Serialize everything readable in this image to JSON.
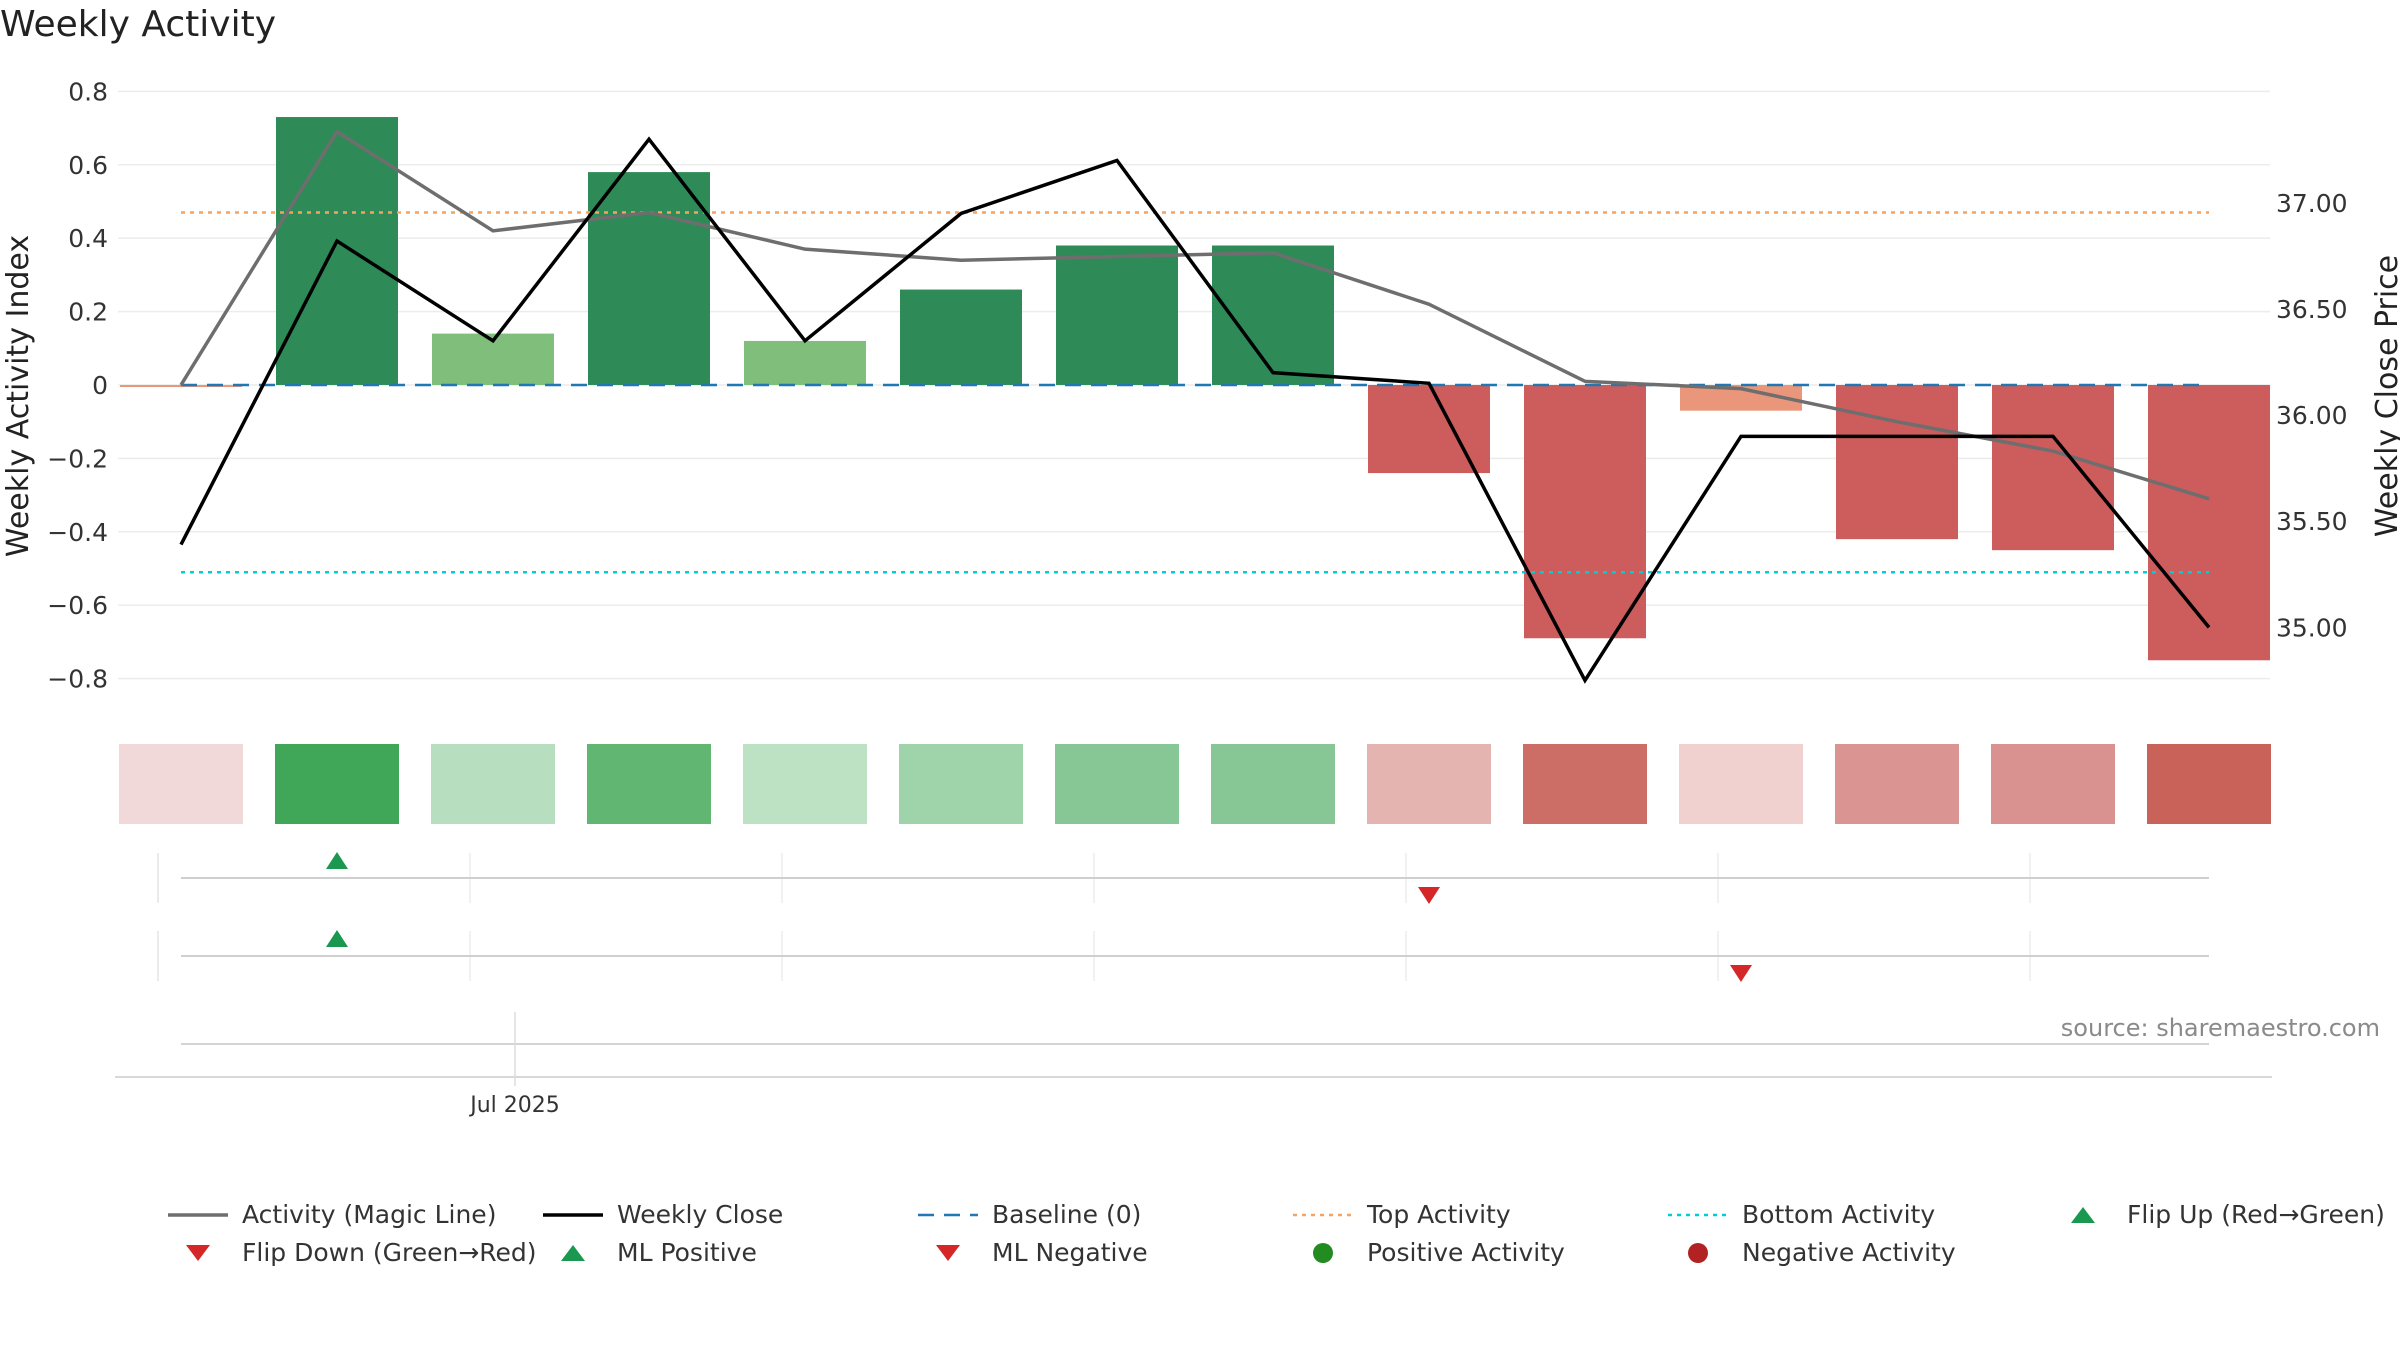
{
  "title": "Weekly Activity",
  "source": "source: sharemaestro.com",
  "colors": {
    "bar_pos_strong": "#2e8b57",
    "bar_pos_light": "#7fbf7b",
    "bar_neg_strong": "#cd5c5c",
    "bar_neg_light": "#e9967a",
    "magic_line": "#6e6e6e",
    "weekly_close": "#000000",
    "baseline": "#1f77b4",
    "top_activity": "#f4a460",
    "bottom_activity": "#00ced1",
    "up_marker": "#1a9850",
    "down_marker": "#d62728",
    "positive_dot": "#228b22",
    "negative_dot": "#b22222"
  },
  "chart_data": {
    "type": "bar",
    "x_tick_label": "Jul 2025",
    "ylabel_left": "Weekly Activity Index",
    "ylabel_right": "Weekly Close Price",
    "ylim_left": [
      -0.88,
      0.82
    ],
    "ylim_right": [
      34.62,
      37.56
    ],
    "yticks_left": [
      "0.8",
      "0.6",
      "0.4",
      "0.2",
      "0",
      "−0.2",
      "−0.4",
      "−0.6",
      "−0.8"
    ],
    "yticks_left_values": [
      0.8,
      0.6,
      0.4,
      0.2,
      0,
      -0.2,
      -0.4,
      -0.6,
      -0.8
    ],
    "yticks_right": [
      "37.00",
      "36.50",
      "36.00",
      "35.50",
      "35.00"
    ],
    "yticks_right_values": [
      37.0,
      36.5,
      36.0,
      35.5,
      35.0
    ],
    "activity": [
      0.0,
      0.73,
      0.14,
      0.58,
      0.12,
      0.26,
      0.38,
      0.38,
      -0.24,
      -0.69,
      -0.07,
      -0.42,
      -0.45,
      -0.75
    ],
    "bar_shade": [
      "neg_light",
      "pos_strong",
      "pos_light",
      "pos_strong",
      "pos_light",
      "pos_strong",
      "pos_strong",
      "pos_strong",
      "neg_strong",
      "neg_strong",
      "neg_light",
      "neg_strong",
      "neg_strong",
      "neg_strong"
    ],
    "magic_line": [
      0.0,
      0.69,
      0.42,
      0.47,
      0.37,
      0.34,
      0.35,
      0.36,
      0.22,
      0.01,
      -0.01,
      -0.1,
      -0.18,
      -0.31
    ],
    "weekly_close": [
      35.39,
      36.82,
      36.35,
      37.3,
      36.35,
      36.95,
      37.2,
      36.2,
      36.15,
      34.75,
      35.9,
      35.9,
      35.9,
      35.0
    ],
    "baseline": 0,
    "top_activity": 0.47,
    "bottom_activity": -0.51,
    "heat_strip": [
      "#f2d9d9",
      "#3fa757",
      "#b7dfbf",
      "#61b671",
      "#bce2c3",
      "#9fd3a9",
      "#86c795",
      "#86c795",
      "#e4b4b1",
      "#cc6e66",
      "#f0d1cf",
      "#da9592",
      "#d99290",
      "#c96259"
    ],
    "signal_rows": [
      {
        "up": [
          1
        ],
        "down": [
          8
        ]
      },
      {
        "up": [
          1
        ],
        "down": [
          10
        ]
      }
    ],
    "legend": [
      {
        "label": "Activity (Magic Line)",
        "kind": "line-solid",
        "color_key": "magic_line"
      },
      {
        "label": "Weekly Close",
        "kind": "line-solid",
        "color_key": "weekly_close"
      },
      {
        "label": "Baseline (0)",
        "kind": "line-dashed",
        "color_key": "baseline"
      },
      {
        "label": "Top Activity",
        "kind": "line-dotted",
        "color_key": "top_activity"
      },
      {
        "label": "Bottom Activity",
        "kind": "line-dotted",
        "color_key": "bottom_activity"
      },
      {
        "label": "Flip Up (Red→Green)",
        "kind": "tri-up",
        "color_key": "up_marker"
      },
      {
        "label": "Flip Down (Green→Red)",
        "kind": "tri-down",
        "color_key": "down_marker"
      },
      {
        "label": "ML Positive",
        "kind": "tri-up",
        "color_key": "up_marker"
      },
      {
        "label": "ML Negative",
        "kind": "tri-down",
        "color_key": "down_marker"
      },
      {
        "label": "Positive Activity",
        "kind": "dot",
        "color_key": "positive_dot"
      },
      {
        "label": "Negative Activity",
        "kind": "dot",
        "color_key": "negative_dot"
      }
    ]
  }
}
